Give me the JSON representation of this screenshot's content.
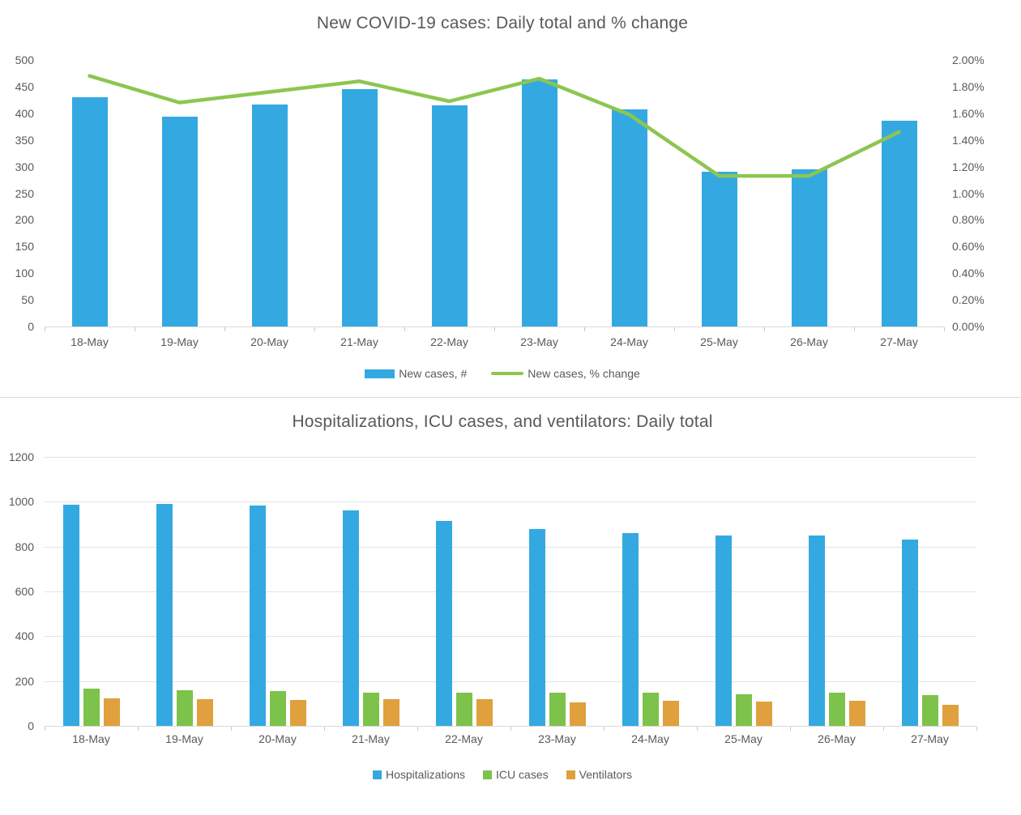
{
  "chart_data": [
    {
      "type": "combo-bar-line",
      "title": "New COVID-19 cases: Daily total and % change",
      "categories": [
        "18-May",
        "19-May",
        "20-May",
        "21-May",
        "22-May",
        "23-May",
        "24-May",
        "25-May",
        "26-May",
        "27-May"
      ],
      "series": [
        {
          "name": "New cases, #",
          "chart": "bar",
          "axis": "left",
          "color": "#34A9E1",
          "values": [
            430,
            394,
            416,
            445,
            415,
            464,
            407,
            290,
            295,
            386
          ]
        },
        {
          "name": "New cases, % change",
          "chart": "line",
          "axis": "right",
          "color": "#8CC650",
          "values": [
            1.88,
            1.68,
            1.76,
            1.84,
            1.69,
            1.86,
            1.59,
            1.13,
            1.13,
            1.46
          ]
        }
      ],
      "left_axis": {
        "min": 0,
        "max": 500,
        "step": 50,
        "tick_labels": [
          "500",
          "450",
          "400",
          "350",
          "300",
          "250",
          "200",
          "150",
          "100",
          "50",
          "0"
        ]
      },
      "right_axis": {
        "min": 0,
        "max": 2,
        "step": 0.2,
        "tick_labels": [
          "2.00%",
          "1.80%",
          "1.60%",
          "1.40%",
          "1.20%",
          "1.00%",
          "0.80%",
          "0.60%",
          "0.40%",
          "0.20%",
          "0.00%"
        ]
      },
      "xlabel": "",
      "ylabel": "",
      "grid": false,
      "legend_position": "bottom"
    },
    {
      "type": "bar",
      "title": "Hospitalizations, ICU cases, and ventilators: Daily total",
      "categories": [
        "18-May",
        "19-May",
        "20-May",
        "21-May",
        "22-May",
        "23-May",
        "24-May",
        "25-May",
        "26-May",
        "27-May"
      ],
      "series": [
        {
          "name": "Hospitalizations",
          "color": "#34A9E1",
          "values": [
            985,
            992,
            983,
            962,
            915,
            880,
            862,
            848,
            848,
            833
          ]
        },
        {
          "name": "ICU cases",
          "color": "#7DC24B",
          "values": [
            165,
            158,
            155,
            150,
            148,
            148,
            148,
            142,
            150,
            137
          ]
        },
        {
          "name": "Ventilators",
          "color": "#DFA03D",
          "values": [
            123,
            118,
            114,
            118,
            118,
            105,
            113,
            110,
            113,
            93
          ]
        }
      ],
      "left_axis": {
        "min": 0,
        "max": 1200,
        "step": 200,
        "tick_labels": [
          "1200",
          "1000",
          "800",
          "600",
          "400",
          "200",
          "0"
        ]
      },
      "xlabel": "",
      "ylabel": "",
      "grid": true,
      "legend_position": "bottom"
    }
  ],
  "ui": {
    "background": "#FFFFFF",
    "text_color": "#595959",
    "grid_color": "#E3E3E3",
    "axis_color": "#D9D9D9",
    "divider_color": "#D9D9D9"
  }
}
